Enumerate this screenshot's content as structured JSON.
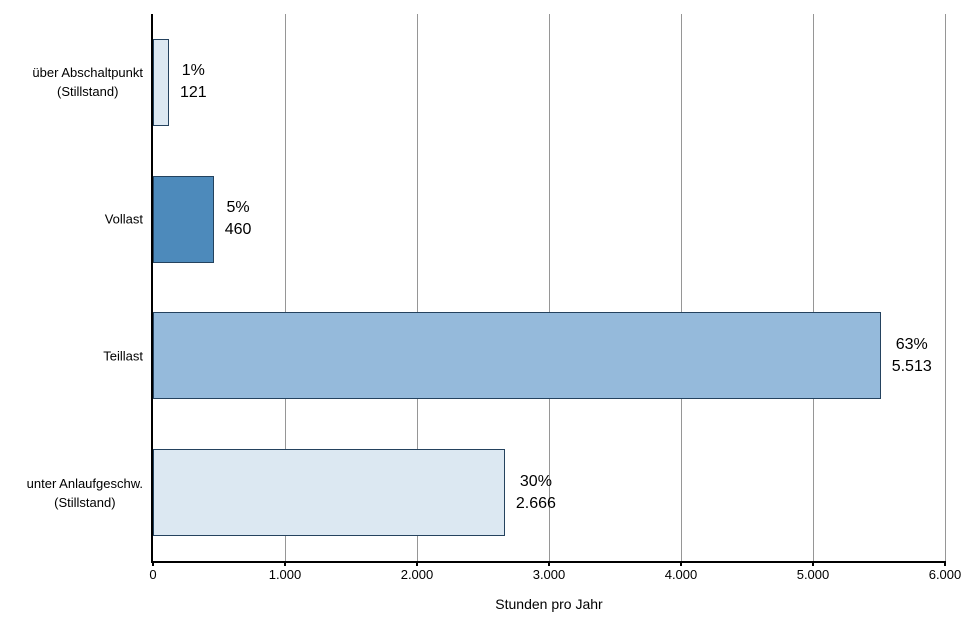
{
  "chart_data": {
    "type": "bar",
    "orientation": "horizontal",
    "title": "",
    "xlabel": "Stunden pro Jahr",
    "ylabel": "",
    "xlim": [
      0,
      6000
    ],
    "xticks": [
      0,
      1000,
      2000,
      3000,
      4000,
      5000,
      6000
    ],
    "xtick_labels": [
      "0",
      "1.000",
      "2.000",
      "3.000",
      "4.000",
      "5.000",
      "6.000"
    ],
    "grid": true,
    "legend": false,
    "bars": [
      {
        "category_lines": [
          "über Abschaltpunkt",
          "(Stillstand)"
        ],
        "value": 121,
        "value_label": "121",
        "percent_label": "1%",
        "fill": "#dce8f2"
      },
      {
        "category_lines": [
          "Vollast"
        ],
        "value": 460,
        "value_label": "460",
        "percent_label": "5%",
        "fill": "#4d8abb"
      },
      {
        "category_lines": [
          "Teillast"
        ],
        "value": 5513,
        "value_label": "5.513",
        "percent_label": "63%",
        "fill": "#95badb"
      },
      {
        "category_lines": [
          "unter Anlaufgeschw.",
          "(Stillstand)"
        ],
        "value": 2666,
        "value_label": "2.666",
        "percent_label": "30%",
        "fill": "#dce8f2"
      }
    ],
    "colors": {
      "bar_border": "#24425e",
      "gridline": "#969696",
      "axis": "#000000",
      "label_text": "#000000"
    }
  }
}
